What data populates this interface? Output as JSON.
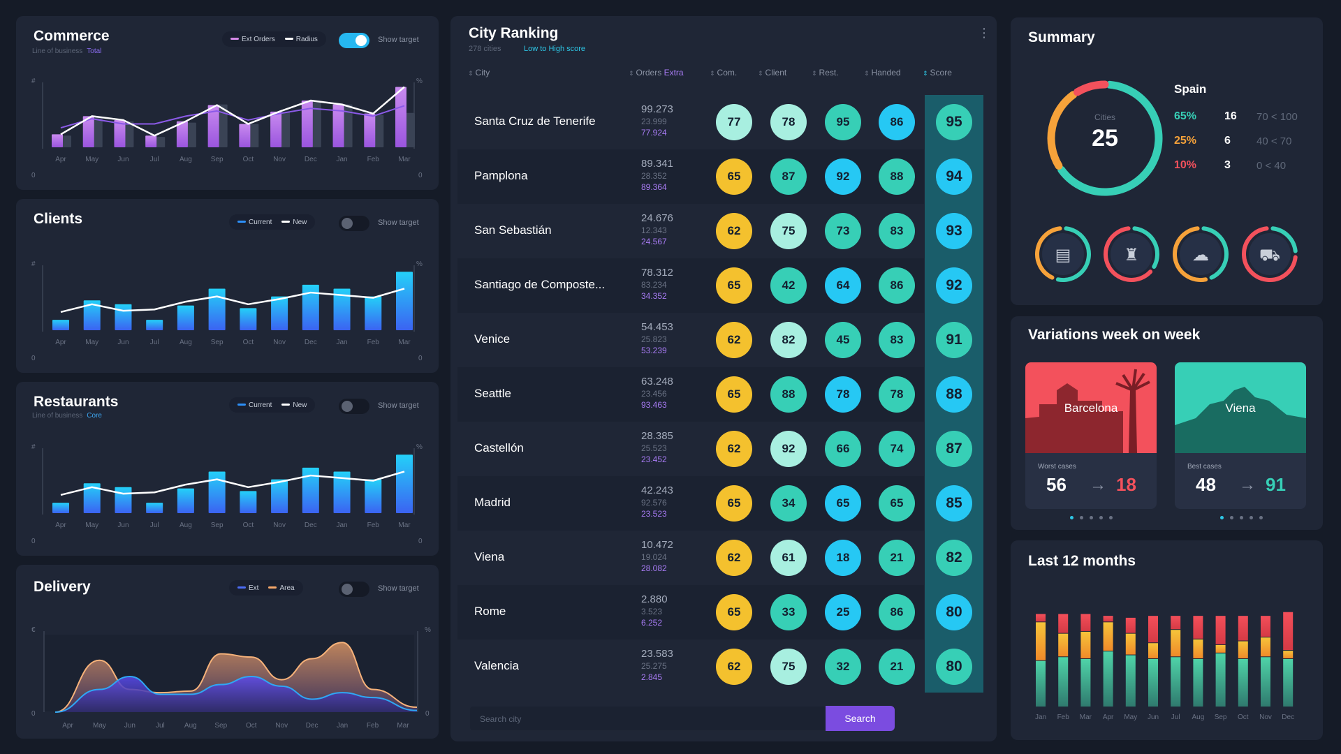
{
  "colors": {
    "purple": "#a86ae8",
    "blue": "#2d8ff7",
    "cyan": "#26c8f4",
    "teal": "#37cfb6",
    "yellow": "#f4c12e",
    "mint": "#a8efe0",
    "red": "#f3515c",
    "orange": "#f6a23a"
  },
  "commerce": {
    "title": "Commerce",
    "sub_label": "Line of business",
    "sub_value": "Total",
    "legend": [
      "Ext Orders",
      "Radius"
    ],
    "show_target": "Show target",
    "left_axis": "#",
    "right_axis": "%",
    "zero_left": "0",
    "zero_right": "0"
  },
  "clients": {
    "title": "Clients",
    "legend": [
      "Current",
      "New"
    ],
    "show_target": "Show target",
    "left_axis": "#",
    "right_axis": "%",
    "zero_left": "0",
    "zero_right": "0"
  },
  "restaurants": {
    "title": "Restaurants",
    "sub_label": "Line of business",
    "sub_value": "Core",
    "legend": [
      "Current",
      "New"
    ],
    "show_target": "Show target",
    "left_axis": "#",
    "right_axis": "%",
    "zero_left": "0",
    "zero_right": "0"
  },
  "delivery": {
    "title": "Delivery",
    "legend": [
      "Ext",
      "Area"
    ],
    "show_target": "Show target",
    "left_axis": "€",
    "right_axis": "%",
    "zero_left": "0",
    "zero_right": "0"
  },
  "chart_data": [
    {
      "type": "bar",
      "name": "commerce",
      "categories": [
        "Apr",
        "May",
        "Jun",
        "Jul",
        "Aug",
        "Sep",
        "Oct",
        "Nov",
        "Dec",
        "Jan",
        "Feb",
        "Mar"
      ],
      "series": [
        {
          "name": "Ext Orders",
          "values": [
            20,
            48,
            42,
            18,
            40,
            65,
            36,
            55,
            72,
            66,
            52,
            93
          ]
        },
        {
          "name": "",
          "values": [
            18,
            46,
            40,
            16,
            38,
            66,
            36,
            54,
            70,
            66,
            50,
            53
          ]
        },
        {
          "name": "Radius",
          "values": [
            30,
            44,
            36,
            36,
            48,
            56,
            42,
            52,
            60,
            56,
            48,
            64
          ]
        }
      ],
      "ylim": [
        0,
        100
      ]
    },
    {
      "type": "bar",
      "name": "clients",
      "categories": [
        "Apr",
        "May",
        "Jun",
        "Jul",
        "Aug",
        "Sep",
        "Oct",
        "Nov",
        "Dec",
        "Jan",
        "Feb",
        "Mar"
      ],
      "series": [
        {
          "name": "Current",
          "values": [
            16,
            46,
            40,
            16,
            38,
            64,
            34,
            52,
            70,
            64,
            52,
            90
          ]
        },
        {
          "name": "New",
          "values": [
            28,
            40,
            30,
            32,
            44,
            52,
            40,
            48,
            58,
            54,
            50,
            64
          ]
        }
      ],
      "ylim": [
        0,
        100
      ]
    },
    {
      "type": "bar",
      "name": "restaurants",
      "categories": [
        "Apr",
        "May",
        "Jun",
        "Jul",
        "Aug",
        "Sep",
        "Oct",
        "Nov",
        "Dec",
        "Jan",
        "Feb",
        "Mar"
      ],
      "series": [
        {
          "name": "Current",
          "values": [
            16,
            46,
            40,
            16,
            38,
            64,
            34,
            52,
            70,
            64,
            52,
            90
          ]
        },
        {
          "name": "New",
          "values": [
            28,
            40,
            30,
            32,
            44,
            52,
            40,
            48,
            58,
            54,
            50,
            64
          ]
        }
      ],
      "ylim": [
        0,
        100
      ]
    },
    {
      "type": "area",
      "name": "delivery",
      "categories": [
        "Apr",
        "May",
        "Jun",
        "Jul",
        "Aug",
        "Sep",
        "Oct",
        "Nov",
        "Dec",
        "Jan",
        "Feb",
        "Mar"
      ],
      "series": [
        {
          "name": "Area",
          "values": [
            0,
            64,
            28,
            24,
            26,
            72,
            68,
            40,
            66,
            86,
            28,
            6
          ]
        },
        {
          "name": "Ext",
          "values": [
            0,
            28,
            44,
            22,
            22,
            34,
            44,
            32,
            16,
            24,
            18,
            2
          ]
        }
      ],
      "ylim": [
        0,
        100
      ]
    },
    {
      "type": "bar",
      "name": "last_12_months",
      "categories": [
        "Jan",
        "Feb",
        "Mar",
        "Apr",
        "May",
        "Jun",
        "Jul",
        "Aug",
        "Sep",
        "Oct",
        "Nov",
        "Dec"
      ],
      "series": [
        {
          "name": "",
          "values": [
            48,
            52,
            50,
            58,
            54,
            50,
            52,
            50,
            56,
            50,
            52,
            50
          ]
        },
        {
          "name": "",
          "values": [
            40,
            24,
            28,
            30,
            22,
            16,
            28,
            20,
            8,
            18,
            20,
            8
          ]
        },
        {
          "name": "",
          "values": [
            8,
            20,
            18,
            6,
            16,
            28,
            14,
            24,
            30,
            26,
            22,
            40
          ]
        }
      ],
      "ylim": [
        0,
        100
      ]
    }
  ],
  "ranking": {
    "title": "City Ranking",
    "count": "278 cities",
    "sort_label": "Low to High score",
    "headers": {
      "city": "City",
      "orders": "Orders",
      "orders_extra": "Extra",
      "com": "Com.",
      "client": "Client",
      "rest": "Rest.",
      "handed": "Handed",
      "score": "Score"
    },
    "rows": [
      {
        "city": "Santa Cruz de Tenerife",
        "o1": "99.273",
        "o2": "23.999",
        "o3": "77.924",
        "com": "77",
        "client": "78",
        "rest": "95",
        "handed": "86",
        "score": "95",
        "c": [
          "mint",
          "mint",
          "teal",
          "cyan",
          "teal"
        ]
      },
      {
        "city": "Pamplona",
        "o1": "89.341",
        "o2": "28.352",
        "o3": "89.364",
        "com": "65",
        "client": "87",
        "rest": "92",
        "handed": "88",
        "score": "94",
        "c": [
          "yellow",
          "teal",
          "cyan",
          "teal",
          "cyan"
        ]
      },
      {
        "city": "San Sebastián",
        "o1": "24.676",
        "o2": "12.343",
        "o3": "24.567",
        "com": "62",
        "client": "75",
        "rest": "73",
        "handed": "83",
        "score": "93",
        "c": [
          "yellow",
          "mint",
          "teal",
          "teal",
          "cyan"
        ]
      },
      {
        "city": "Santiago de Composte...",
        "o1": "78.312",
        "o2": "83.234",
        "o3": "34.352",
        "com": "65",
        "client": "42",
        "rest": "64",
        "handed": "86",
        "score": "92",
        "c": [
          "yellow",
          "teal",
          "cyan",
          "teal",
          "cyan"
        ]
      },
      {
        "city": "Venice",
        "o1": "54.453",
        "o2": "25.823",
        "o3": "53.239",
        "com": "62",
        "client": "82",
        "rest": "45",
        "handed": "83",
        "score": "91",
        "c": [
          "yellow",
          "mint",
          "teal",
          "teal",
          "teal"
        ]
      },
      {
        "city": "Seattle",
        "o1": "63.248",
        "o2": "23.456",
        "o3": "93.463",
        "com": "65",
        "client": "88",
        "rest": "78",
        "handed": "78",
        "score": "88",
        "c": [
          "yellow",
          "teal",
          "cyan",
          "teal",
          "cyan"
        ]
      },
      {
        "city": "Castellón",
        "o1": "28.385",
        "o2": "25.523",
        "o3": "23.452",
        "com": "62",
        "client": "92",
        "rest": "66",
        "handed": "74",
        "score": "87",
        "c": [
          "yellow",
          "mint",
          "teal",
          "teal",
          "teal"
        ]
      },
      {
        "city": "Madrid",
        "o1": "42.243",
        "o2": "92.576",
        "o3": "23.523",
        "com": "65",
        "client": "34",
        "rest": "65",
        "handed": "65",
        "score": "85",
        "c": [
          "yellow",
          "teal",
          "cyan",
          "teal",
          "cyan"
        ]
      },
      {
        "city": "Viena",
        "o1": "10.472",
        "o2": "19.024",
        "o3": "28.082",
        "com": "62",
        "client": "61",
        "rest": "18",
        "handed": "21",
        "score": "82",
        "c": [
          "yellow",
          "mint",
          "cyan",
          "teal",
          "teal"
        ]
      },
      {
        "city": "Rome",
        "o1": "2.880",
        "o2": "3.523",
        "o3": "6.252",
        "com": "65",
        "client": "33",
        "rest": "25",
        "handed": "86",
        "score": "80",
        "c": [
          "yellow",
          "teal",
          "cyan",
          "teal",
          "cyan"
        ]
      },
      {
        "city": "Valencia",
        "o1": "23.583",
        "o2": "25.275",
        "o3": "2.845",
        "com": "62",
        "client": "75",
        "rest": "32",
        "handed": "21",
        "score": "80",
        "c": [
          "yellow",
          "mint",
          "teal",
          "teal",
          "teal"
        ]
      }
    ],
    "search_placeholder": "Search city",
    "search_button": "Search"
  },
  "summary": {
    "title": "Summary",
    "ring_label": "Cities",
    "ring_value": "25",
    "ring_shares": [
      0.65,
      0.25,
      0.1
    ],
    "country": "Spain",
    "stats": [
      {
        "pct": "65%",
        "count": "16",
        "range": "70 < 100",
        "color": "#37cfb6"
      },
      {
        "pct": "25%",
        "count": "6",
        "range": "40 < 70",
        "color": "#f6a23a"
      },
      {
        "pct": "10%",
        "count": "3",
        "range": "0 < 40",
        "color": "#f3515c"
      }
    ],
    "icons": [
      {
        "name": "wallet-icon",
        "glyph": "▤",
        "split": [
          0.55,
          0.45
        ],
        "c1": "#37cfb6",
        "c2": "#f6a23a"
      },
      {
        "name": "bottle-icon",
        "glyph": "♜",
        "split": [
          0.35,
          0.65
        ],
        "c1": "#37cfb6",
        "c2": "#f3515c"
      },
      {
        "name": "chef-hat-icon",
        "glyph": "☁",
        "split": [
          0.45,
          0.55
        ],
        "c1": "#37cfb6",
        "c2": "#f6a23a"
      },
      {
        "name": "scooter-icon",
        "glyph": "⛟",
        "split": [
          0.25,
          0.75
        ],
        "c1": "#37cfb6",
        "c2": "#f3515c"
      }
    ]
  },
  "variations": {
    "title": "Variations week on week",
    "cards": [
      {
        "city": "Barcelona",
        "label": "Worst cases",
        "from": "56",
        "to": "18",
        "to_color": "#f3515c",
        "tint": "#f3515c"
      },
      {
        "city": "Viena",
        "label": "Best cases",
        "from": "48",
        "to": "91",
        "to_color": "#37cfb6",
        "tint": "#37cfb6"
      }
    ]
  },
  "last12": {
    "title": "Last 12 months"
  }
}
